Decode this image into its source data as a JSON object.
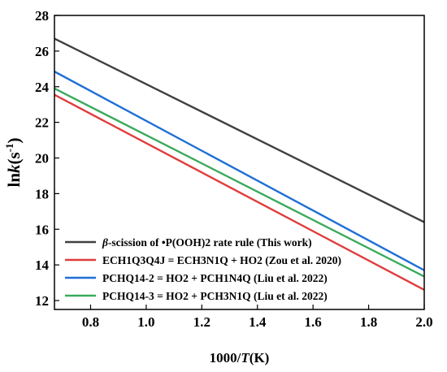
{
  "chart_data": {
    "type": "line",
    "xlabel": {
      "prefix": "1000/",
      "italic": "T",
      "suffix": "(K)"
    },
    "ylabel": {
      "prefix": "ln",
      "italic": "k",
      "suffix": "(s",
      "sup": "-1",
      "close": ")"
    },
    "xlim": [
      0.67,
      2.0
    ],
    "ylim": [
      11.5,
      28
    ],
    "xticks": [
      0.8,
      1.0,
      1.2,
      1.4,
      1.6,
      1.8,
      2.0
    ],
    "xtick_labels": [
      "0.8",
      "1.0",
      "1.2",
      "1.4",
      "1.6",
      "1.8",
      "2.0"
    ],
    "yticks": [
      12,
      14,
      16,
      18,
      20,
      22,
      24,
      26,
      28
    ],
    "ytick_labels": [
      "12",
      "14",
      "16",
      "18",
      "20",
      "22",
      "24",
      "26",
      "28"
    ],
    "grid": false,
    "legend_position": "bottom-left",
    "series": [
      {
        "name_prefix": "β",
        "name": "-scission of •P(OOH)2 rate rule (This work)",
        "color": "#404040",
        "x": [
          0.67,
          2.0
        ],
        "y": [
          26.7,
          16.4
        ]
      },
      {
        "name": "ECH1Q3Q4J = ECH3N1Q + HO2 (Zou et al. 2020)",
        "color": "#e03c3c",
        "x": [
          0.67,
          2.0
        ],
        "y": [
          23.55,
          12.6
        ]
      },
      {
        "name": "PCHQ14-2 = HO2 + PCH1N4Q (Liu et al. 2022)",
        "color": "#1f6fd6",
        "x": [
          0.67,
          2.0
        ],
        "y": [
          24.85,
          13.7
        ]
      },
      {
        "name": "PCHQ14-3 = HO2 + PCH3N1Q  (Liu et al. 2022)",
        "color": "#3aaa5c",
        "x": [
          0.67,
          2.0
        ],
        "y": [
          23.9,
          13.35
        ]
      }
    ]
  }
}
